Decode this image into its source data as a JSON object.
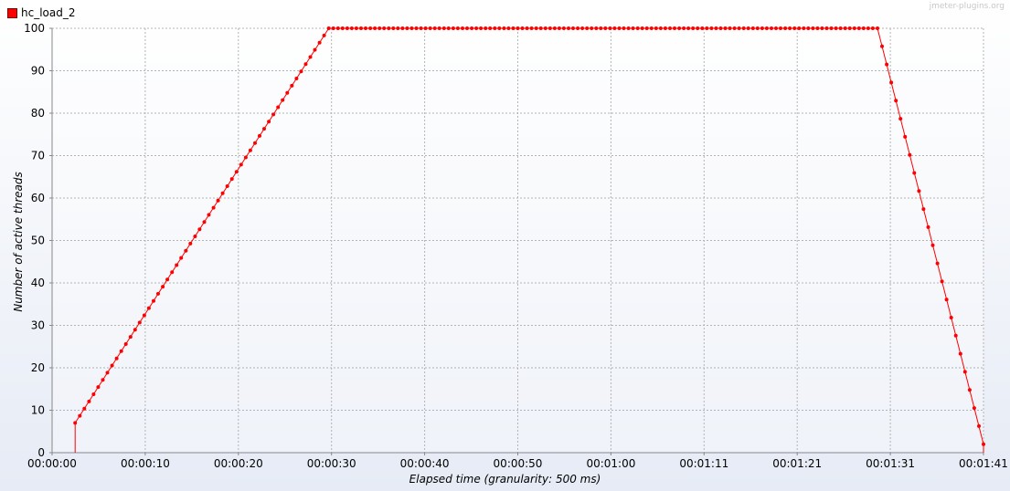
{
  "legend": {
    "label": "hc_load_2",
    "color": "#ff0000"
  },
  "watermark": "jmeter-plugins.org",
  "chart_data": {
    "type": "line",
    "title": "",
    "xlabel": "Elapsed time (granularity: 500 ms)",
    "ylabel": "Number of active threads",
    "xlim_seconds": [
      0,
      101
    ],
    "ylim": [
      0,
      100
    ],
    "x_ticks": [
      "00:00:00",
      "00:00:10",
      "00:00:20",
      "00:00:30",
      "00:00:40",
      "00:00:50",
      "00:01:00",
      "00:01:11",
      "00:01:21",
      "00:01:31",
      "00:01:41"
    ],
    "y_ticks": [
      0,
      10,
      20,
      30,
      40,
      50,
      60,
      70,
      80,
      90,
      100
    ],
    "grid": true,
    "legend_position": "top-left",
    "series": [
      {
        "name": "hc_load_2",
        "color": "#ff0000",
        "line_points": [
          {
            "t": 2.5,
            "v": 0
          },
          {
            "t": 2.5,
            "v": 7
          },
          {
            "t": 30.0,
            "v": 100
          },
          {
            "t": 89.5,
            "v": 100
          },
          {
            "t": 101.0,
            "v": 2
          },
          {
            "t": 101.0,
            "v": 0
          }
        ],
        "sample_interval_s": 0.5
      }
    ]
  }
}
